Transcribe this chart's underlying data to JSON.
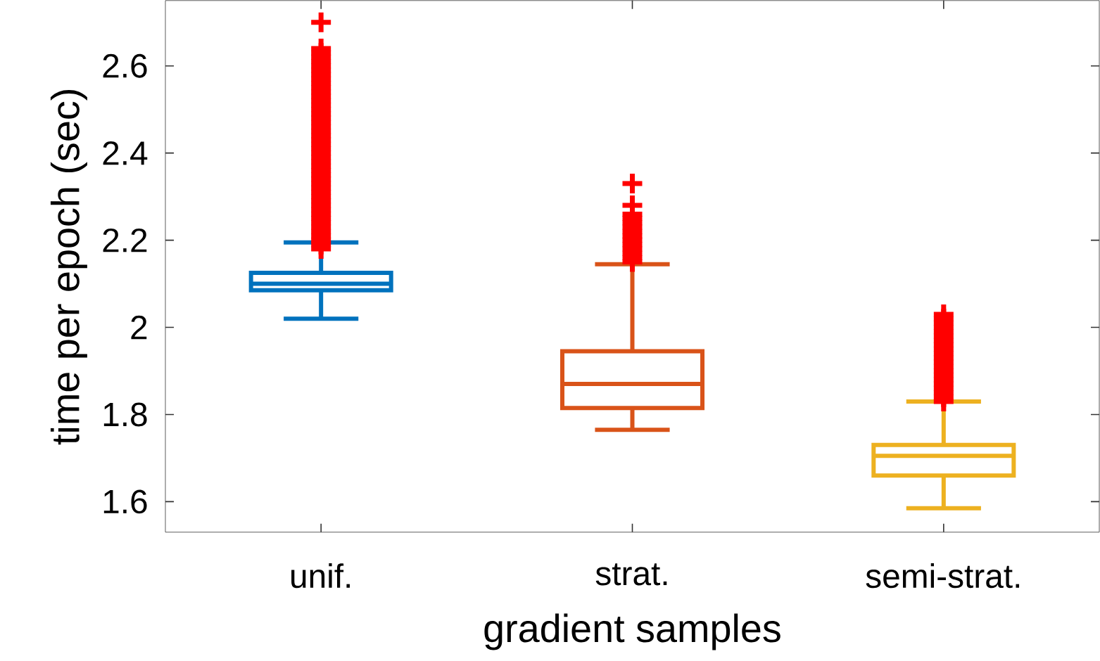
{
  "chart_data": {
    "type": "box",
    "xlabel": "gradient samples",
    "ylabel": "time per epoch (sec)",
    "categories": [
      "unif.",
      "strat.",
      "semi-strat."
    ],
    "colors": [
      "#0072bd",
      "#d95319",
      "#edb120"
    ],
    "marker": "cross",
    "ylim": [
      1.53,
      2.75
    ],
    "yticks": [
      1.6,
      1.8,
      2,
      2.2,
      2.4,
      2.6
    ],
    "boxes": [
      {
        "low": 2.02,
        "q1": 2.085,
        "median": 2.1,
        "q3": 2.125,
        "high": 2.195,
        "outliers": [
          2.18,
          2.19,
          2.2,
          2.21,
          2.22,
          2.23,
          2.24,
          2.25,
          2.26,
          2.27,
          2.28,
          2.29,
          2.3,
          2.31,
          2.32,
          2.33,
          2.34,
          2.35,
          2.36,
          2.37,
          2.38,
          2.39,
          2.4,
          2.41,
          2.42,
          2.43,
          2.44,
          2.45,
          2.46,
          2.47,
          2.48,
          2.49,
          2.5,
          2.51,
          2.52,
          2.53,
          2.54,
          2.55,
          2.56,
          2.57,
          2.58,
          2.59,
          2.6,
          2.61,
          2.62,
          2.63,
          2.64,
          2.7
        ]
      },
      {
        "low": 1.765,
        "q1": 1.815,
        "median": 1.87,
        "q3": 1.945,
        "high": 2.145,
        "outliers": [
          2.15,
          2.16,
          2.17,
          2.18,
          2.19,
          2.2,
          2.21,
          2.22,
          2.23,
          2.24,
          2.25,
          2.26,
          2.28,
          2.33
        ]
      },
      {
        "low": 1.585,
        "q1": 1.66,
        "median": 1.705,
        "q3": 1.73,
        "high": 1.83,
        "outliers": [
          1.83,
          1.84,
          1.85,
          1.86,
          1.87,
          1.88,
          1.89,
          1.9,
          1.91,
          1.92,
          1.93,
          1.94,
          1.95,
          1.96,
          1.97,
          1.98,
          1.99,
          2.0,
          2.01,
          2.02,
          2.03
        ]
      }
    ]
  }
}
